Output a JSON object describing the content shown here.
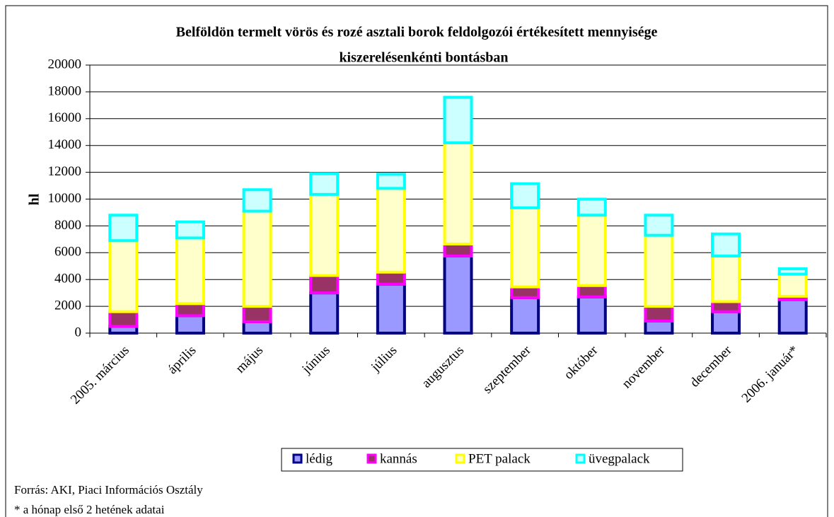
{
  "chart_data": {
    "type": "stacked_bar",
    "title": [
      "Belföldön termelt vörös és rozé asztali borok feldolgozói értékesített mennyisége",
      "kiszerelésenkénti bontásban"
    ],
    "y_label": "hl",
    "categories": [
      "2005. március",
      "április",
      "május",
      "június",
      "július",
      "augusztus",
      "szeptember",
      "október",
      "november",
      "december",
      "2006. január*"
    ],
    "series": [
      {
        "name": "lédig",
        "color": "#9999ff",
        "stroke": "#000080",
        "values": [
          500,
          1300,
          850,
          3000,
          3650,
          5750,
          2650,
          2700,
          900,
          1600,
          2500
        ]
      },
      {
        "name": "kannás",
        "color": "#993366",
        "stroke": "#ff00ff",
        "values": [
          1100,
          900,
          1150,
          1300,
          900,
          900,
          800,
          850,
          1100,
          750,
          250
        ]
      },
      {
        "name": "PET palack",
        "color": "#ffffcc",
        "stroke": "#ffff00",
        "values": [
          5300,
          4900,
          7100,
          6050,
          6250,
          7550,
          5900,
          5250,
          5300,
          3400,
          1650
        ]
      },
      {
        "name": "üvegpalack",
        "color": "#ccffff",
        "stroke": "#00ffff",
        "values": [
          1900,
          1200,
          1600,
          1550,
          1050,
          3400,
          1800,
          1200,
          1500,
          1650,
          400
        ]
      }
    ],
    "ylim": [
      0,
      20000
    ],
    "yticks": [
      0,
      2000,
      4000,
      6000,
      8000,
      10000,
      12000,
      14000,
      16000,
      18000,
      20000
    ],
    "grid": true,
    "legend": "bottom",
    "notes": [
      "Forrás: AKI, Piaci Információs Osztály",
      "* a hónap első 2 hetének adatai"
    ]
  }
}
